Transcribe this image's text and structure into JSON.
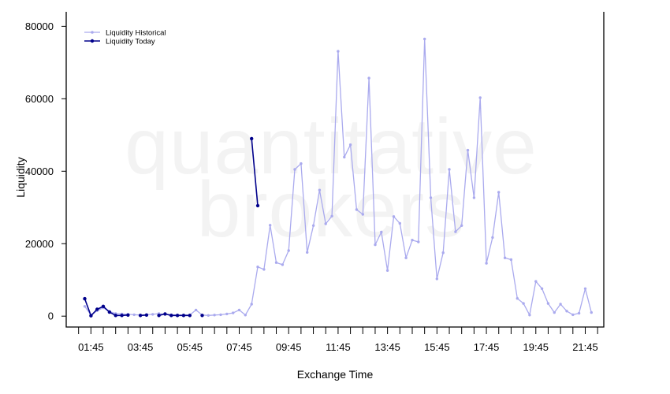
{
  "chart_data": {
    "type": "line",
    "title": "",
    "xlabel": "Exchange Time",
    "ylabel": "Liquidity",
    "watermark": [
      "quantitative",
      "brokers"
    ],
    "x_ticks": [
      "01:45",
      "03:45",
      "05:45",
      "07:45",
      "09:45",
      "11:45",
      "13:45",
      "15:45",
      "17:45",
      "19:45",
      "21:45"
    ],
    "x_tick_hours": [
      1.75,
      3.75,
      5.75,
      7.75,
      9.75,
      11.75,
      13.75,
      15.75,
      17.75,
      19.75,
      21.75
    ],
    "xlim_hours": [
      0.75,
      22.5
    ],
    "y_ticks": [
      0,
      20000,
      40000,
      60000,
      80000
    ],
    "ylim": [
      -3000,
      84000
    ],
    "grid": false,
    "legend_position": "top-left",
    "series": [
      {
        "name": "Liquidity Historical",
        "color": "#aaaaee",
        "marker": "circle",
        "points": [
          [
            1.5,
            2700
          ],
          [
            1.75,
            300
          ],
          [
            2.0,
            1500
          ],
          [
            2.25,
            2300
          ],
          [
            2.5,
            1300
          ],
          [
            2.75,
            700
          ],
          [
            3.0,
            600
          ],
          [
            3.25,
            500
          ],
          [
            3.5,
            400
          ],
          [
            3.75,
            300
          ],
          [
            4.0,
            400
          ],
          [
            4.25,
            500
          ],
          [
            4.5,
            700
          ],
          [
            4.75,
            500
          ],
          [
            5.0,
            400
          ],
          [
            5.25,
            300
          ],
          [
            5.5,
            300
          ],
          [
            5.75,
            300
          ],
          [
            6.0,
            1700
          ],
          [
            6.25,
            300
          ],
          [
            6.5,
            200
          ],
          [
            6.75,
            300
          ],
          [
            7.0,
            400
          ],
          [
            7.25,
            600
          ],
          [
            7.5,
            900
          ],
          [
            7.75,
            1700
          ],
          [
            8.0,
            300
          ],
          [
            8.25,
            3300
          ],
          [
            8.5,
            13600
          ],
          [
            8.75,
            12900
          ],
          [
            9.0,
            25100
          ],
          [
            9.25,
            14800
          ],
          [
            9.5,
            14200
          ],
          [
            9.75,
            18100
          ],
          [
            10.0,
            40500
          ],
          [
            10.25,
            42100
          ],
          [
            10.5,
            17600
          ],
          [
            10.75,
            25000
          ],
          [
            11.0,
            34800
          ],
          [
            11.25,
            25500
          ],
          [
            11.5,
            27600
          ],
          [
            11.75,
            73100
          ],
          [
            12.0,
            43900
          ],
          [
            12.25,
            47300
          ],
          [
            12.5,
            29400
          ],
          [
            12.75,
            28100
          ],
          [
            13.0,
            65700
          ],
          [
            13.25,
            19700
          ],
          [
            13.5,
            23200
          ],
          [
            13.75,
            12600
          ],
          [
            14.0,
            27500
          ],
          [
            14.25,
            25600
          ],
          [
            14.5,
            16100
          ],
          [
            14.75,
            21000
          ],
          [
            15.0,
            20500
          ],
          [
            15.25,
            76500
          ],
          [
            15.5,
            32700
          ],
          [
            15.75,
            10300
          ],
          [
            16.0,
            17500
          ],
          [
            16.25,
            40500
          ],
          [
            16.5,
            23300
          ],
          [
            16.75,
            25000
          ],
          [
            17.0,
            45800
          ],
          [
            17.25,
            32700
          ],
          [
            17.5,
            60300
          ],
          [
            17.75,
            14600
          ],
          [
            18.0,
            21700
          ],
          [
            18.25,
            34200
          ],
          [
            18.5,
            16100
          ],
          [
            18.75,
            15600
          ],
          [
            19.0,
            4900
          ],
          [
            19.25,
            3500
          ],
          [
            19.5,
            300
          ],
          [
            19.75,
            9600
          ],
          [
            20.0,
            7600
          ],
          [
            20.25,
            3500
          ],
          [
            20.5,
            1000
          ],
          [
            20.75,
            3300
          ],
          [
            21.0,
            1400
          ],
          [
            21.25,
            400
          ],
          [
            21.5,
            800
          ],
          [
            21.75,
            7600
          ],
          [
            22.0,
            1000
          ]
        ]
      },
      {
        "name": "Liquidity Today",
        "color": "#00008b",
        "marker": "circle",
        "points": [
          [
            1.5,
            4800
          ],
          [
            1.75,
            100
          ],
          [
            2.0,
            1900
          ],
          [
            2.25,
            2700
          ],
          [
            2.5,
            1100
          ],
          [
            2.75,
            200
          ],
          [
            3.0,
            200
          ],
          [
            3.25,
            300
          ],
          [
            null,
            null
          ],
          [
            3.75,
            200
          ],
          [
            4.0,
            300
          ],
          [
            null,
            null
          ],
          [
            4.5,
            200
          ],
          [
            4.75,
            600
          ],
          [
            5.0,
            200
          ],
          [
            5.25,
            200
          ],
          [
            5.5,
            200
          ],
          [
            5.75,
            200
          ],
          [
            null,
            null
          ],
          [
            6.25,
            200
          ],
          [
            null,
            null
          ],
          [
            8.25,
            49000
          ],
          [
            8.5,
            30500
          ]
        ]
      }
    ]
  }
}
